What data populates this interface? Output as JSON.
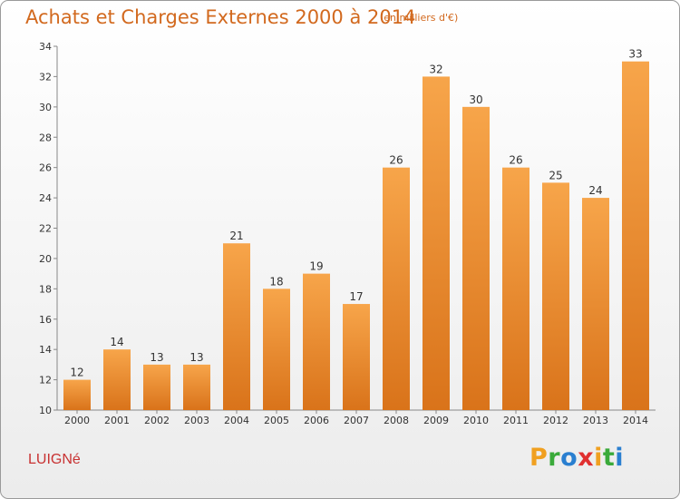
{
  "header": {
    "title": "Achats et Charges Externes 2000 à 2014",
    "unit": "(en milliers d'€)"
  },
  "footer": {
    "commune": "LUIGNé",
    "logo_letters": [
      "P",
      "r",
      "o",
      "x",
      "i",
      "t",
      "i"
    ]
  },
  "colors": {
    "title": "#d2691e",
    "bar_light": "#f7a54a",
    "bar_dark": "#d9731a",
    "commune": "#c83232"
  },
  "chart_data": {
    "type": "bar",
    "title": "Achats et Charges Externes 2000 à 2014",
    "subtitle": "(en milliers d'€)",
    "categories": [
      "2000",
      "2001",
      "2002",
      "2003",
      "2004",
      "2005",
      "2006",
      "2007",
      "2008",
      "2009",
      "2010",
      "2011",
      "2012",
      "2013",
      "2014"
    ],
    "values": [
      12,
      14,
      13,
      13,
      21,
      18,
      19,
      17,
      26,
      32,
      30,
      26,
      25,
      24,
      33
    ],
    "ylim": [
      10,
      34
    ],
    "yticks": [
      10,
      12,
      14,
      16,
      18,
      20,
      22,
      24,
      26,
      28,
      30,
      32,
      34
    ],
    "grid": false,
    "xlabel": "",
    "ylabel": ""
  }
}
